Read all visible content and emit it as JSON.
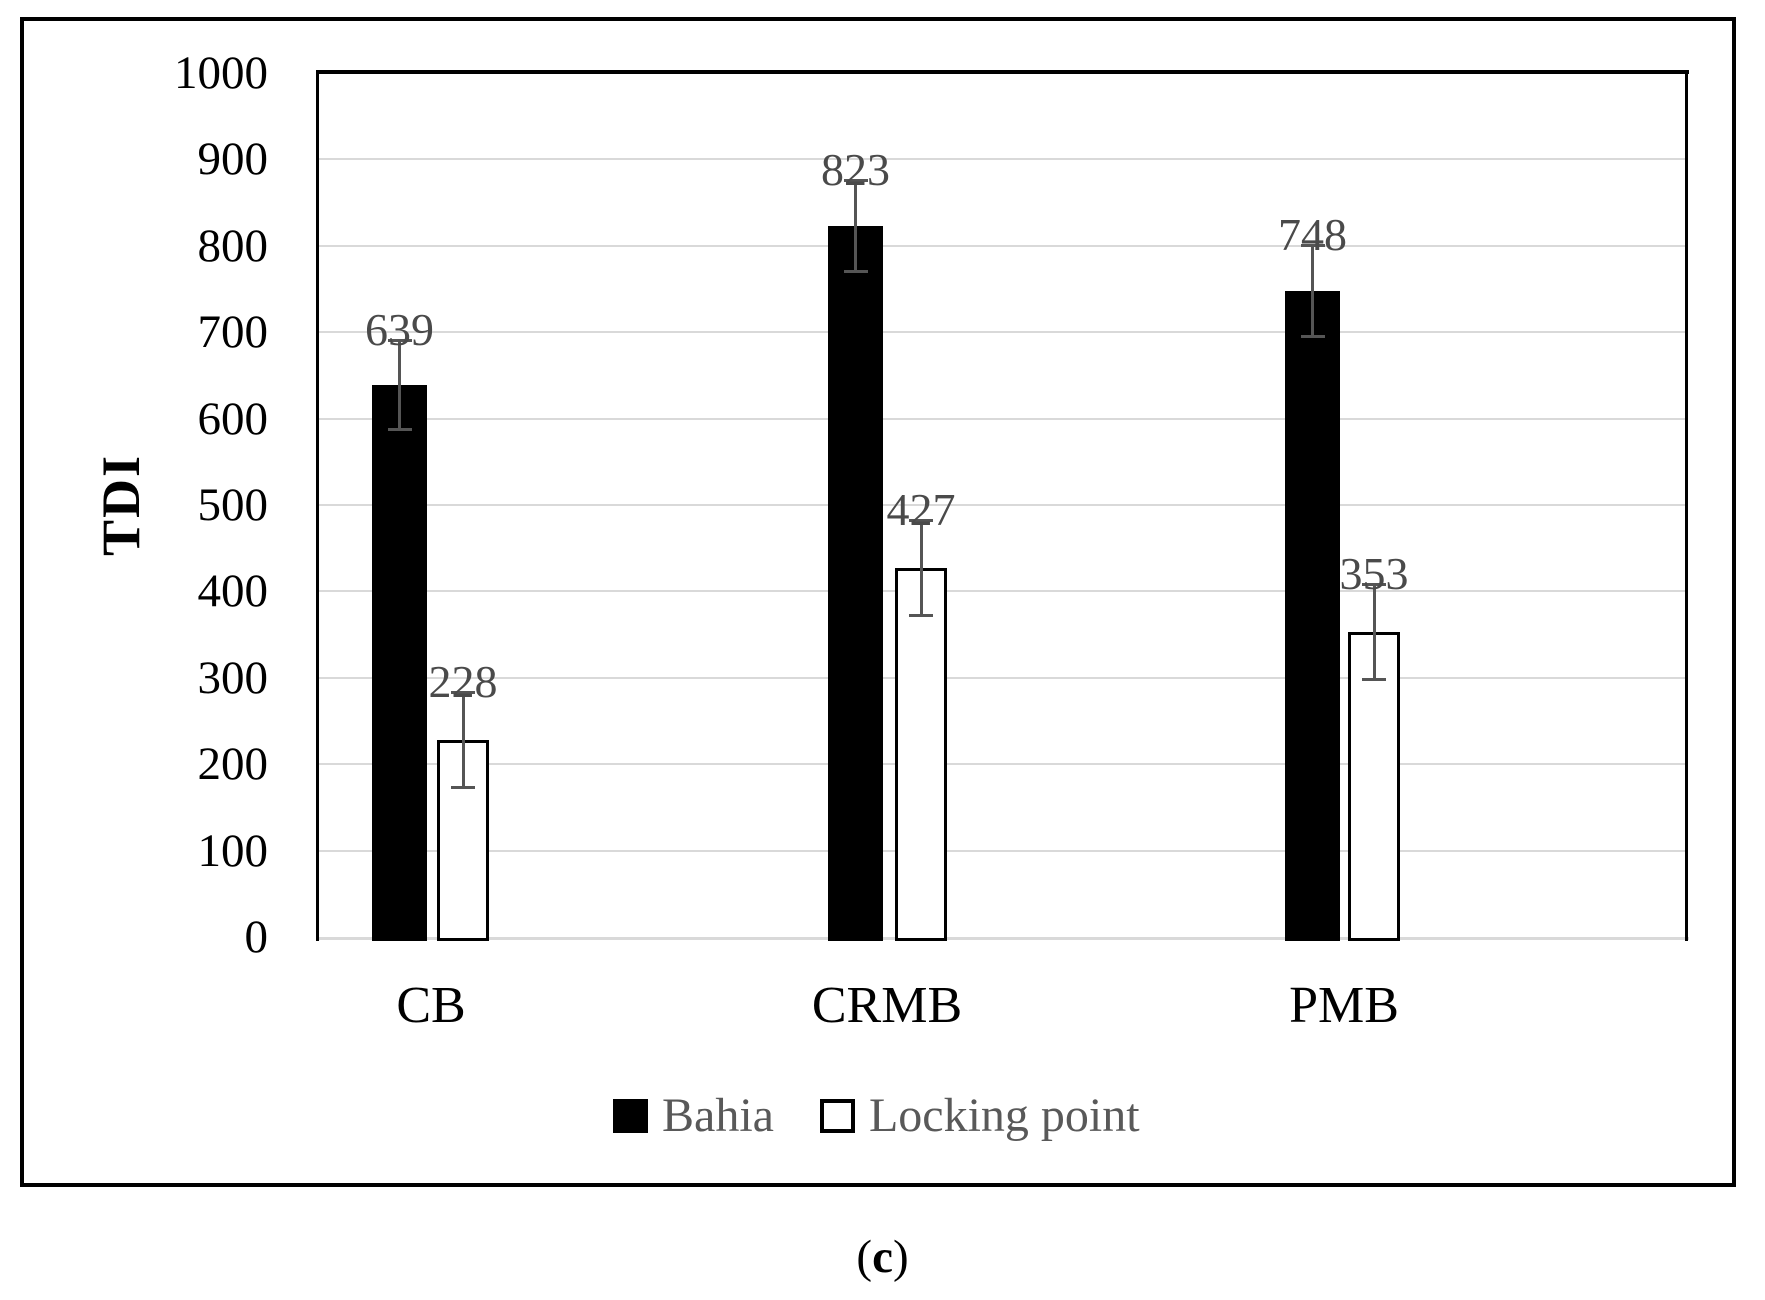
{
  "figure": {
    "caption_open": "(",
    "caption_letter": "c",
    "caption_close": ")"
  },
  "chart_data": {
    "type": "bar",
    "title": "",
    "xlabel": "",
    "ylabel": "TDI",
    "categories": [
      "CB",
      "CRMB",
      "PMB"
    ],
    "series": [
      {
        "name": "Bahia",
        "style": "filled-black",
        "values": [
          639,
          823,
          748
        ],
        "errors": [
          52,
          53,
          53
        ],
        "data_labels": [
          "639",
          "823",
          "748"
        ]
      },
      {
        "name": "Locking point",
        "style": "white-outlined",
        "values": [
          228,
          427,
          353
        ],
        "errors": [
          56,
          56,
          56
        ],
        "data_labels": [
          "228",
          "427",
          "353"
        ]
      }
    ],
    "ylim": [
      0,
      1000
    ],
    "ytick_step": 100,
    "yticks": [
      "0",
      "100",
      "200",
      "300",
      "400",
      "500",
      "600",
      "700",
      "800",
      "900",
      "1000"
    ],
    "grid": true,
    "legend_position": "bottom",
    "error_bars": true,
    "colors": {
      "bar_fill": "#000000",
      "bar_outline": "#000000",
      "gridline": "#d9d9d9",
      "baseline": "#d9d9d9",
      "error_bar": "#555555",
      "data_label": "#4a4a4a",
      "legend_text": "#595959",
      "axis_text": "#000000"
    }
  }
}
